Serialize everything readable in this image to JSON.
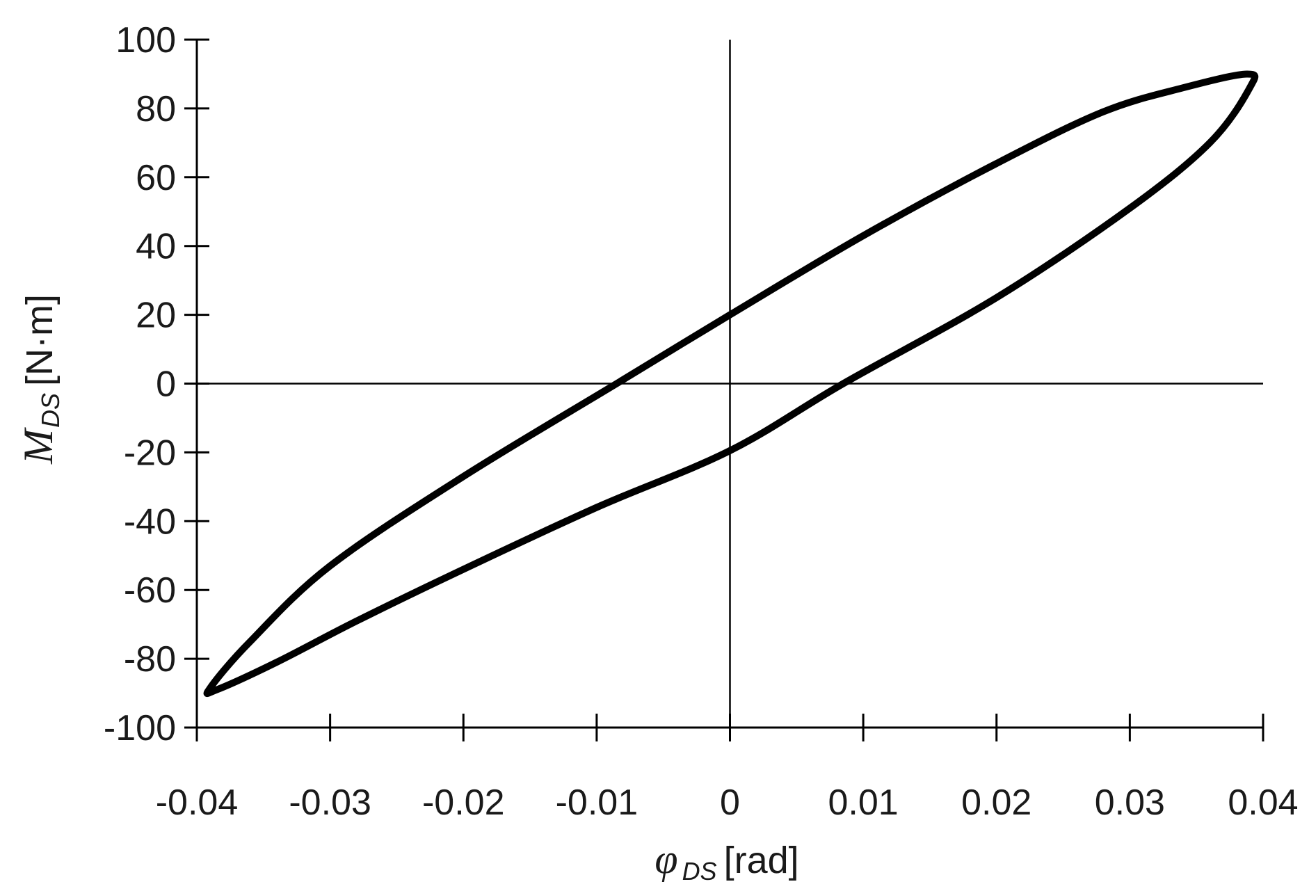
{
  "chart_data": {
    "type": "line",
    "title": "",
    "xlabel": {
      "symbol": "φ",
      "subscript": "DS",
      "unit": "[rad]"
    },
    "ylabel": {
      "symbol": "M",
      "subscript": "DS",
      "unit": "[N·m]"
    },
    "xlim": [
      -0.04,
      0.04
    ],
    "ylim": [
      -100,
      100
    ],
    "xticks": [
      -0.04,
      -0.03,
      -0.02,
      -0.01,
      0,
      0.01,
      0.02,
      0.03,
      0.04
    ],
    "xtick_labels": [
      "-0.04",
      "-0.03",
      "-0.02",
      "-0.01",
      "0",
      "0.01",
      "0.02",
      "0.03",
      "0.04"
    ],
    "yticks": [
      100,
      80,
      60,
      40,
      20,
      0,
      -20,
      -40,
      -60,
      -80,
      -100
    ],
    "ytick_labels": [
      "100",
      "80",
      "60",
      "40",
      "20",
      "0",
      "-20",
      "-40",
      "-60",
      "-80",
      "-100"
    ],
    "grid": false,
    "legend": "none",
    "zero_lines": true,
    "series": [
      {
        "style": "closed-loop",
        "color": "#000000",
        "points": [
          [
            -0.0385,
            -89
          ],
          [
            -0.034,
            -81
          ],
          [
            -0.028,
            -69
          ],
          [
            -0.02,
            -54
          ],
          [
            -0.01,
            -36
          ],
          [
            0,
            -19.5
          ],
          [
            0.0085,
            0
          ],
          [
            0.02,
            25
          ],
          [
            0.03,
            51
          ],
          [
            0.036,
            70
          ],
          [
            0.039,
            86
          ],
          [
            0.0388,
            90
          ],
          [
            0.034,
            86
          ],
          [
            0.028,
            79
          ],
          [
            0.02,
            64
          ],
          [
            0.01,
            43
          ],
          [
            0,
            20
          ],
          [
            -0.0085,
            0
          ],
          [
            -0.02,
            -27
          ],
          [
            -0.03,
            -53
          ],
          [
            -0.036,
            -75
          ],
          [
            -0.039,
            -88.5
          ]
        ]
      }
    ]
  }
}
